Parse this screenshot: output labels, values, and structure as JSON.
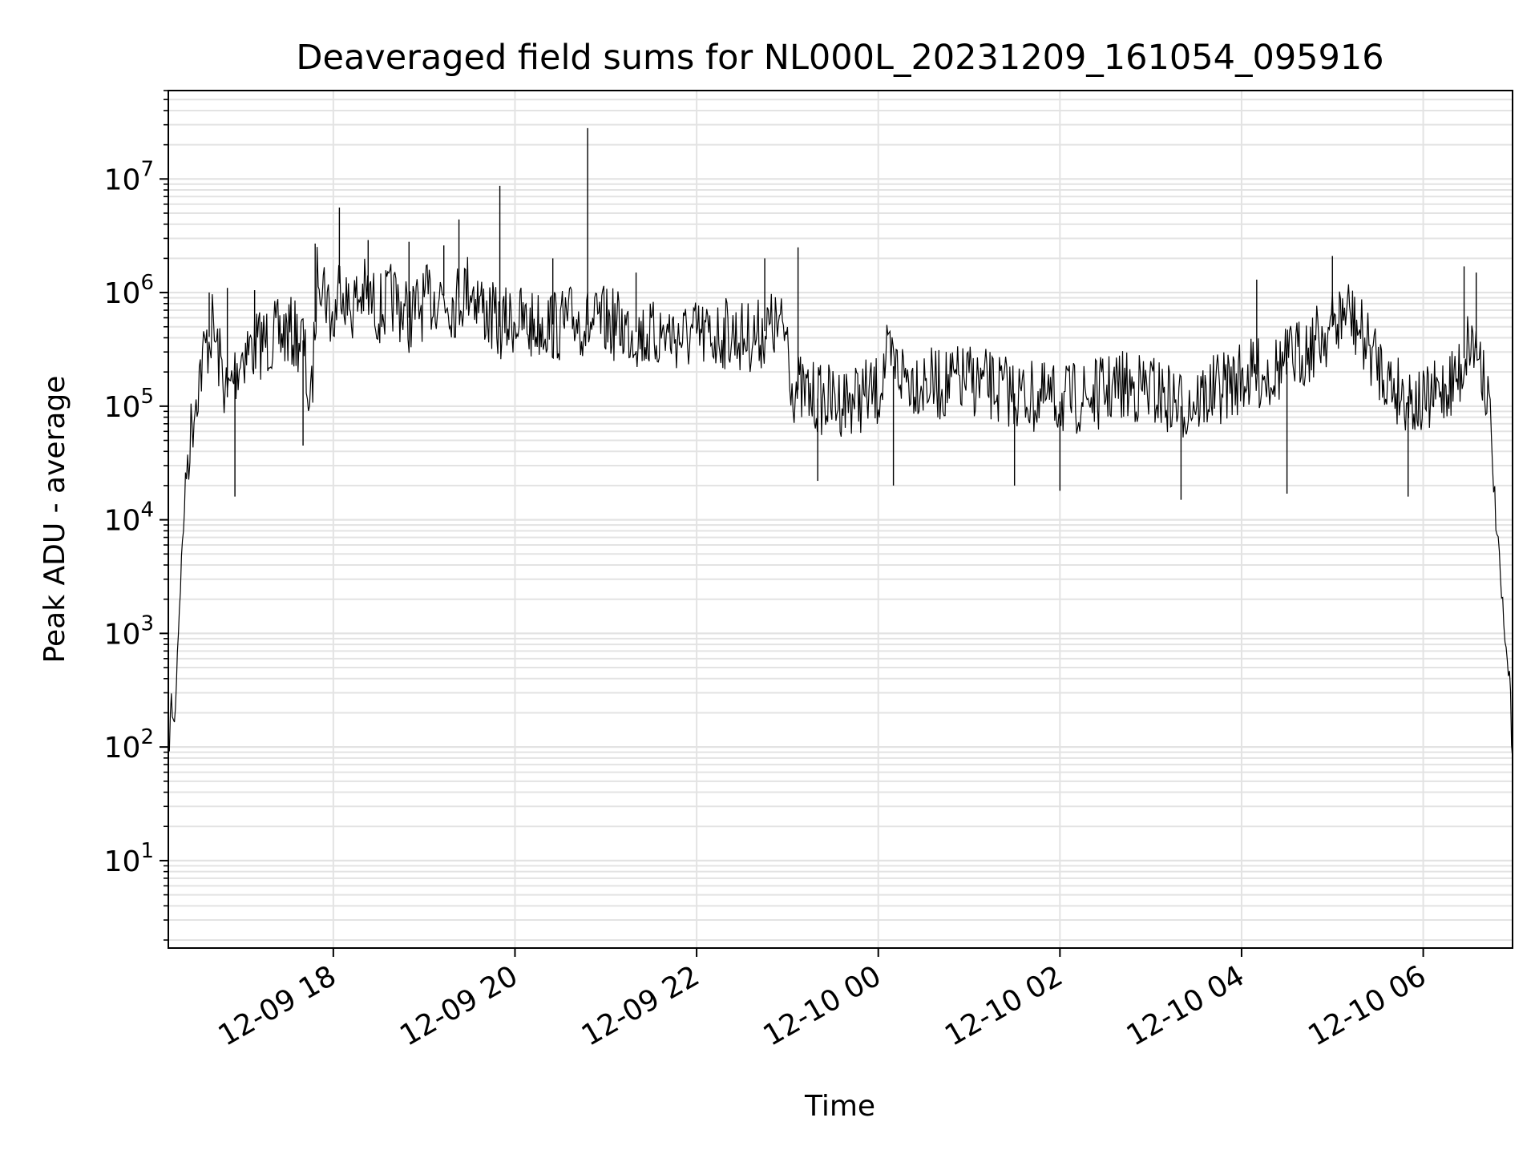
{
  "chart_data": {
    "type": "line",
    "title": "Deaveraged field sums for NL000L_20231209_161054_095916",
    "xlabel": "Time",
    "ylabel": "Peak ADU - average",
    "x_range": [
      "2023-12-09 16:11",
      "2023-12-10 06:59"
    ],
    "x_ticks": [
      {
        "value": "2023-12-09 18:00",
        "label": "12-09 18"
      },
      {
        "value": "2023-12-09 20:00",
        "label": "12-09 20"
      },
      {
        "value": "2023-12-09 22:00",
        "label": "12-09 22"
      },
      {
        "value": "2023-12-10 00:00",
        "label": "12-10 00"
      },
      {
        "value": "2023-12-10 02:00",
        "label": "12-10 02"
      },
      {
        "value": "2023-12-10 04:00",
        "label": "12-10 04"
      },
      {
        "value": "2023-12-10 06:00",
        "label": "12-10 06"
      }
    ],
    "y_scale": "log",
    "ylim": [
      1.7,
      60000000
    ],
    "y_ticks": [
      {
        "value": 10,
        "base": "10",
        "exp": "1"
      },
      {
        "value": 100,
        "base": "10",
        "exp": "2"
      },
      {
        "value": 1000,
        "base": "10",
        "exp": "3"
      },
      {
        "value": 10000,
        "base": "10",
        "exp": "4"
      },
      {
        "value": 100000,
        "base": "10",
        "exp": "5"
      },
      {
        "value": 1000000,
        "base": "10",
        "exp": "6"
      },
      {
        "value": 10000000,
        "base": "10",
        "exp": "7"
      }
    ],
    "grid": true,
    "series": [
      {
        "color": "#000000",
        "points": [
          [
            "2023-12-09 16:11",
            80
          ],
          [
            "2023-12-09 16:13",
            250
          ],
          [
            "2023-12-09 16:15",
            150
          ],
          [
            "2023-12-09 16:17",
            700
          ],
          [
            "2023-12-09 16:19",
            2800
          ],
          [
            "2023-12-09 16:21",
            9000
          ],
          [
            "2023-12-09 16:23",
            30000
          ],
          [
            "2023-12-09 16:26",
            60000
          ],
          [
            "2023-12-09 16:30",
            150000
          ],
          [
            "2023-12-09 16:35",
            300000
          ],
          [
            "2023-12-09 16:40",
            500000
          ],
          [
            "2023-12-09 16:45",
            250000
          ],
          [
            "2023-12-09 16:50",
            120000
          ],
          [
            "2023-12-09 16:55",
            200000
          ],
          [
            "2023-12-09 17:00",
            300000
          ],
          [
            "2023-12-09 17:10",
            350000
          ],
          [
            "2023-12-09 17:20",
            400000
          ],
          [
            "2023-12-09 17:30",
            450000
          ],
          [
            "2023-12-09 17:40",
            380000
          ],
          [
            "2023-12-09 17:45",
            80000
          ],
          [
            "2023-12-09 17:50",
            2000000
          ],
          [
            "2023-12-09 18:00",
            500000
          ],
          [
            "2023-12-09 18:05",
            1500000
          ],
          [
            "2023-12-09 18:10",
            700000
          ],
          [
            "2023-12-09 18:20",
            1000000
          ],
          [
            "2023-12-09 18:30",
            700000
          ],
          [
            "2023-12-09 18:40",
            900000
          ],
          [
            "2023-12-09 18:50",
            600000
          ],
          [
            "2023-12-09 19:00",
            800000
          ],
          [
            "2023-12-09 19:10",
            1000000
          ],
          [
            "2023-12-09 19:20",
            800000
          ],
          [
            "2023-12-09 19:30",
            1200000
          ],
          [
            "2023-12-09 19:40",
            700000
          ],
          [
            "2023-12-09 19:50",
            500000
          ],
          [
            "2023-12-09 20:00",
            600000
          ],
          [
            "2023-12-09 20:10",
            500000
          ],
          [
            "2023-12-09 20:20",
            550000
          ],
          [
            "2023-12-09 20:30",
            500000
          ],
          [
            "2023-12-09 20:40",
            600000
          ],
          [
            "2023-12-09 20:50",
            500000
          ],
          [
            "2023-12-09 21:00",
            550000
          ],
          [
            "2023-12-09 21:10",
            500000
          ],
          [
            "2023-12-09 21:20",
            450000
          ],
          [
            "2023-12-09 21:30",
            400000
          ],
          [
            "2023-12-09 21:40",
            450000
          ],
          [
            "2023-12-09 21:50",
            400000
          ],
          [
            "2023-12-09 22:00",
            420000
          ],
          [
            "2023-12-09 22:10",
            400000
          ],
          [
            "2023-12-09 22:20",
            450000
          ],
          [
            "2023-12-09 22:30",
            400000
          ],
          [
            "2023-12-09 22:40",
            420000
          ],
          [
            "2023-12-09 22:50",
            500000
          ],
          [
            "2023-12-09 23:00",
            450000
          ],
          [
            "2023-12-09 23:03",
            150000
          ],
          [
            "2023-12-09 23:15",
            120000
          ],
          [
            "2023-12-09 23:30",
            110000
          ],
          [
            "2023-12-09 23:45",
            120000
          ],
          [
            "2023-12-10 00:00",
            130000
          ],
          [
            "2023-12-10 00:05",
            250000
          ],
          [
            "2023-12-10 00:20",
            180000
          ],
          [
            "2023-12-10 00:40",
            150000
          ],
          [
            "2023-12-10 01:00",
            170000
          ],
          [
            "2023-12-10 01:20",
            140000
          ],
          [
            "2023-12-10 01:40",
            120000
          ],
          [
            "2023-12-10 02:00",
            110000
          ],
          [
            "2023-12-10 02:20",
            120000
          ],
          [
            "2023-12-10 02:40",
            150000
          ],
          [
            "2023-12-10 03:00",
            140000
          ],
          [
            "2023-12-10 03:20",
            100000
          ],
          [
            "2023-12-10 03:40",
            130000
          ],
          [
            "2023-12-10 04:00",
            180000
          ],
          [
            "2023-12-10 04:20",
            200000
          ],
          [
            "2023-12-10 04:40",
            300000
          ],
          [
            "2023-12-10 05:00",
            500000
          ],
          [
            "2023-12-10 05:10",
            700000
          ],
          [
            "2023-12-10 05:20",
            400000
          ],
          [
            "2023-12-10 05:40",
            150000
          ],
          [
            "2023-12-10 06:00",
            100000
          ],
          [
            "2023-12-10 06:15",
            150000
          ],
          [
            "2023-12-10 06:25",
            200000
          ],
          [
            "2023-12-10 06:30",
            400000
          ],
          [
            "2023-12-10 06:37",
            300000
          ],
          [
            "2023-12-10 06:42",
            150000
          ],
          [
            "2023-12-10 06:45",
            50000
          ],
          [
            "2023-12-10 06:48",
            10000
          ],
          [
            "2023-12-10 06:51",
            3000
          ],
          [
            "2023-12-10 06:54",
            800
          ],
          [
            "2023-12-10 06:57",
            400
          ],
          [
            "2023-12-10 06:59",
            80
          ]
        ]
      }
    ],
    "spikes": [
      [
        "2023-12-09 16:38",
        1000000
      ],
      [
        "2023-12-09 16:50",
        1100000
      ],
      [
        "2023-12-09 16:55",
        16000
      ],
      [
        "2023-12-09 17:08",
        1050000
      ],
      [
        "2023-12-09 17:40",
        45000
      ],
      [
        "2023-12-09 17:48",
        2700000
      ],
      [
        "2023-12-09 18:04",
        5600000
      ],
      [
        "2023-12-09 18:23",
        2900000
      ],
      [
        "2023-12-09 18:50",
        2800000
      ],
      [
        "2023-12-09 19:13",
        2600000
      ],
      [
        "2023-12-09 19:23",
        4400000
      ],
      [
        "2023-12-09 19:50",
        8700000
      ],
      [
        "2023-12-09 20:25",
        2000000
      ],
      [
        "2023-12-09 20:48",
        28000000
      ],
      [
        "2023-12-09 21:20",
        1500000
      ],
      [
        "2023-12-09 22:45",
        2000000
      ],
      [
        "2023-12-09 23:07",
        2500000
      ],
      [
        "2023-12-09 23:20",
        22000
      ],
      [
        "2023-12-10 00:10",
        20000
      ],
      [
        "2023-12-10 01:30",
        20000
      ],
      [
        "2023-12-10 02:00",
        18000
      ],
      [
        "2023-12-10 03:20",
        15000
      ],
      [
        "2023-12-10 04:10",
        1300000
      ],
      [
        "2023-12-10 04:30",
        17000
      ],
      [
        "2023-12-10 05:00",
        2100000
      ],
      [
        "2023-12-10 05:50",
        16000
      ],
      [
        "2023-12-10 06:27",
        1700000
      ],
      [
        "2023-12-10 06:35",
        1500000
      ]
    ]
  }
}
